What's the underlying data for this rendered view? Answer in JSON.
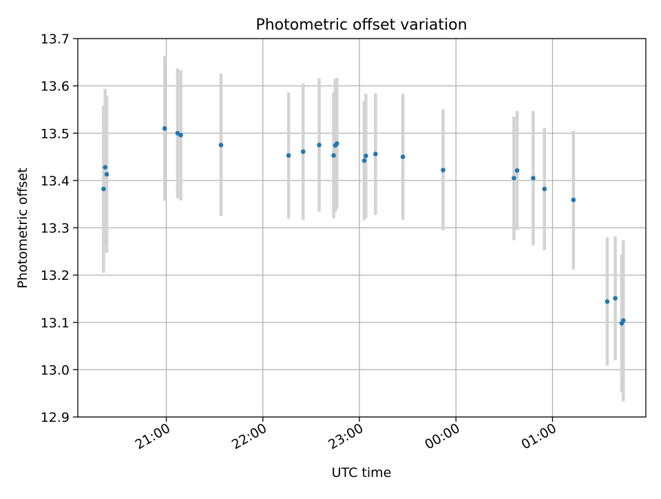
{
  "colors": {
    "marker": "#1f77b4",
    "errorbar": "#d3d3d3",
    "grid": "#b0b0b0",
    "axis": "#000000"
  },
  "chart_data": {
    "type": "scatter",
    "title": "Photometric offset variation",
    "xlabel": "UTC time",
    "ylabel": "Photometric offset",
    "x_axis_type": "time",
    "xlim": [
      "20:05",
      "01:58"
    ],
    "ylim": [
      12.9,
      13.7
    ],
    "grid": true,
    "x_ticks": [
      {
        "value": "21:00",
        "label": "21:00"
      },
      {
        "value": "22:00",
        "label": "22:00"
      },
      {
        "value": "23:00",
        "label": "23:00"
      },
      {
        "value": "00:00",
        "label": "00:00"
      },
      {
        "value": "01:00",
        "label": "01:00"
      }
    ],
    "y_ticks": [
      "12.9",
      "13.0",
      "13.1",
      "13.2",
      "13.3",
      "13.4",
      "13.5",
      "13.6",
      "13.7"
    ],
    "series": [
      {
        "points": [
          {
            "x": "20:21",
            "y": 13.382,
            "err_low": 13.205,
            "err_high": 13.558
          },
          {
            "x": "20:22",
            "y": 13.428,
            "err_low": 13.263,
            "err_high": 13.594
          },
          {
            "x": "20:23",
            "y": 13.413,
            "err_low": 13.247,
            "err_high": 13.579
          },
          {
            "x": "20:59",
            "y": 13.51,
            "err_low": 13.357,
            "err_high": 13.663
          },
          {
            "x": "21:07",
            "y": 13.5,
            "err_low": 13.362,
            "err_high": 13.637
          },
          {
            "x": "21:09",
            "y": 13.496,
            "err_low": 13.358,
            "err_high": 13.633
          },
          {
            "x": "21:34",
            "y": 13.475,
            "err_low": 13.325,
            "err_high": 13.626
          },
          {
            "x": "22:16",
            "y": 13.453,
            "err_low": 13.319,
            "err_high": 13.586
          },
          {
            "x": "22:25",
            "y": 13.461,
            "err_low": 13.317,
            "err_high": 13.605
          },
          {
            "x": "22:35",
            "y": 13.475,
            "err_low": 13.334,
            "err_high": 13.616
          },
          {
            "x": "22:44",
            "y": 13.453,
            "err_low": 13.32,
            "err_high": 13.586
          },
          {
            "x": "22:45",
            "y": 13.474,
            "err_low": 13.333,
            "err_high": 13.615
          },
          {
            "x": "22:46",
            "y": 13.478,
            "err_low": 13.34,
            "err_high": 13.617
          },
          {
            "x": "23:03",
            "y": 13.442,
            "err_low": 13.316,
            "err_high": 13.568
          },
          {
            "x": "23:04",
            "y": 13.452,
            "err_low": 13.321,
            "err_high": 13.583
          },
          {
            "x": "23:10",
            "y": 13.456,
            "err_low": 13.327,
            "err_high": 13.584
          },
          {
            "x": "23:27",
            "y": 13.45,
            "err_low": 13.317,
            "err_high": 13.583
          },
          {
            "x": "23:52",
            "y": 13.422,
            "err_low": 13.295,
            "err_high": 13.55
          },
          {
            "x": "00:36",
            "y": 13.405,
            "err_low": 13.274,
            "err_high": 13.535
          },
          {
            "x": "00:38",
            "y": 13.421,
            "err_low": 13.295,
            "err_high": 13.547
          },
          {
            "x": "00:48",
            "y": 13.405,
            "err_low": 13.263,
            "err_high": 13.547
          },
          {
            "x": "00:55",
            "y": 13.382,
            "err_low": 13.253,
            "err_high": 13.511
          },
          {
            "x": "01:13",
            "y": 13.359,
            "err_low": 13.212,
            "err_high": 13.505
          },
          {
            "x": "01:34",
            "y": 13.144,
            "err_low": 13.009,
            "err_high": 13.28
          },
          {
            "x": "01:39",
            "y": 13.151,
            "err_low": 13.02,
            "err_high": 13.282
          },
          {
            "x": "01:43",
            "y": 13.098,
            "err_low": 12.952,
            "err_high": 13.243
          },
          {
            "x": "01:44",
            "y": 13.104,
            "err_low": 12.933,
            "err_high": 13.274
          }
        ]
      }
    ]
  }
}
